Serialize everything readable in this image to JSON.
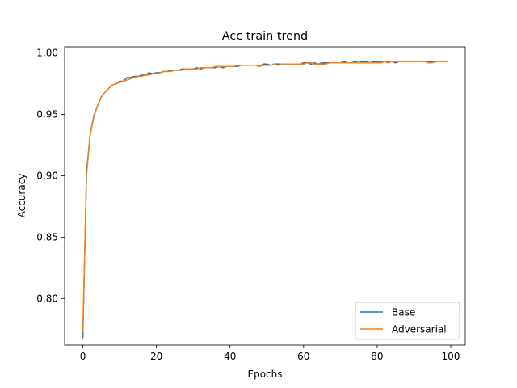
{
  "chart_data": {
    "type": "line",
    "title": "Acc train trend",
    "xlabel": "Epochs",
    "ylabel": "Accuracy",
    "xlim": [
      -4.95,
      103.95
    ],
    "ylim": [
      0.762,
      1.005
    ],
    "xticks": [
      0,
      20,
      40,
      60,
      80,
      100
    ],
    "yticks": [
      0.8,
      0.85,
      0.9,
      0.95,
      1.0
    ],
    "ytick_labels": [
      "0.80",
      "0.85",
      "0.90",
      "0.95",
      "1.00"
    ],
    "grid": false,
    "legend": "lower right",
    "x": [
      0,
      1,
      2,
      3,
      4,
      5,
      6,
      7,
      8,
      9,
      10,
      11,
      12,
      13,
      14,
      15,
      16,
      17,
      18,
      19,
      20,
      21,
      22,
      23,
      24,
      25,
      26,
      27,
      28,
      29,
      30,
      31,
      32,
      33,
      34,
      35,
      36,
      37,
      38,
      39,
      40,
      41,
      42,
      43,
      44,
      45,
      46,
      47,
      48,
      49,
      50,
      51,
      52,
      53,
      54,
      55,
      56,
      57,
      58,
      59,
      60,
      61,
      62,
      63,
      64,
      65,
      66,
      67,
      68,
      69,
      70,
      71,
      72,
      73,
      74,
      75,
      76,
      77,
      78,
      79,
      80,
      81,
      82,
      83,
      84,
      85,
      86,
      87,
      88,
      89,
      90,
      91,
      92,
      93,
      94,
      95,
      96,
      97,
      98,
      99
    ],
    "series": [
      {
        "name": "Base",
        "color": "#1f77b4",
        "values": [
          0.768,
          0.903,
          0.934,
          0.949,
          0.957,
          0.964,
          0.968,
          0.971,
          0.974,
          0.975,
          0.977,
          0.977,
          0.98,
          0.98,
          0.981,
          0.981,
          0.982,
          0.982,
          0.984,
          0.983,
          0.984,
          0.984,
          0.985,
          0.985,
          0.986,
          0.986,
          0.986,
          0.987,
          0.987,
          0.987,
          0.987,
          0.988,
          0.987,
          0.988,
          0.988,
          0.988,
          0.988,
          0.989,
          0.988,
          0.989,
          0.989,
          0.989,
          0.989,
          0.99,
          0.99,
          0.99,
          0.99,
          0.99,
          0.989,
          0.991,
          0.991,
          0.99,
          0.991,
          0.991,
          0.991,
          0.991,
          0.991,
          0.991,
          0.991,
          0.991,
          0.992,
          0.992,
          0.991,
          0.992,
          0.991,
          0.992,
          0.992,
          0.992,
          0.992,
          0.992,
          0.992,
          0.993,
          0.992,
          0.992,
          0.993,
          0.992,
          0.993,
          0.993,
          0.992,
          0.993,
          0.993,
          0.993,
          0.993,
          0.993,
          0.993,
          0.992,
          0.993,
          0.993,
          0.993,
          0.993,
          0.993,
          0.993,
          0.993,
          0.993,
          0.993,
          0.993,
          0.993,
          0.993,
          0.993,
          0.993
        ]
      },
      {
        "name": "Adversarial",
        "color": "#ff7f0e",
        "values": [
          0.773,
          0.9,
          0.933,
          0.948,
          0.957,
          0.964,
          0.968,
          0.971,
          0.974,
          0.975,
          0.976,
          0.977,
          0.978,
          0.979,
          0.98,
          0.981,
          0.981,
          0.982,
          0.982,
          0.983,
          0.983,
          0.984,
          0.985,
          0.985,
          0.985,
          0.986,
          0.986,
          0.986,
          0.987,
          0.987,
          0.987,
          0.987,
          0.988,
          0.988,
          0.988,
          0.988,
          0.989,
          0.989,
          0.989,
          0.989,
          0.989,
          0.989,
          0.99,
          0.99,
          0.99,
          0.99,
          0.99,
          0.99,
          0.989,
          0.99,
          0.99,
          0.99,
          0.991,
          0.99,
          0.991,
          0.991,
          0.991,
          0.991,
          0.991,
          0.991,
          0.991,
          0.992,
          0.992,
          0.991,
          0.991,
          0.991,
          0.991,
          0.992,
          0.992,
          0.992,
          0.992,
          0.992,
          0.992,
          0.992,
          0.992,
          0.992,
          0.992,
          0.992,
          0.992,
          0.992,
          0.992,
          0.992,
          0.993,
          0.992,
          0.993,
          0.993,
          0.993,
          0.993,
          0.993,
          0.993,
          0.993,
          0.993,
          0.993,
          0.993,
          0.992,
          0.992,
          0.993,
          0.993,
          0.993,
          0.993
        ]
      }
    ]
  }
}
